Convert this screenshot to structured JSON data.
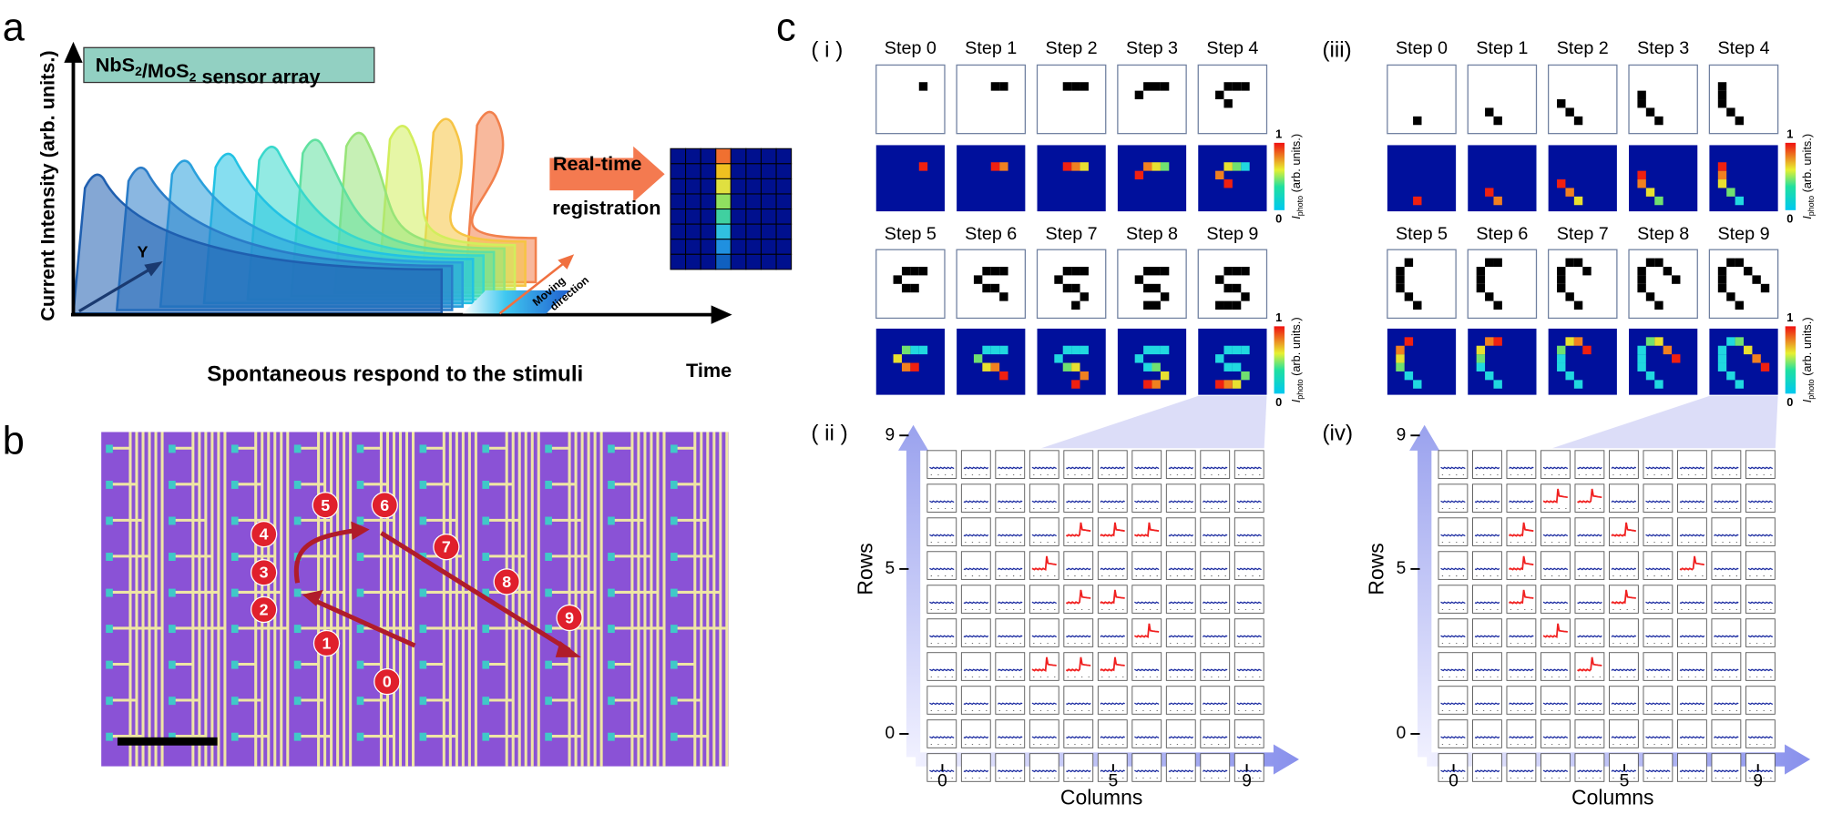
{
  "panels": {
    "a": "a",
    "b": "b",
    "c": "c"
  },
  "a": {
    "title": {
      "p1": "NbS",
      "s1": "2",
      "p2": "/MoS",
      "s2": "2",
      "p3": " sensor array"
    },
    "y_label": "Current Intensity (arb. units.)",
    "x_label": "Spontaneous respond to the stimuli",
    "time": "Time",
    "y": "Y",
    "arrow_top": "Real-time",
    "arrow_bottom": "registration",
    "moving": "Moving",
    "direction": "direction"
  },
  "b": {
    "markers": [
      "0",
      "1",
      "2",
      "3",
      "4",
      "5",
      "6",
      "7",
      "8",
      "9"
    ]
  },
  "c": {
    "sub_i": "( i )",
    "sub_ii": "( ii )",
    "sub_iii": "(iii)",
    "sub_iv": "(iv)",
    "steps": [
      "Step 0",
      "Step 1",
      "Step 2",
      "Step 3",
      "Step 4",
      "Step 5",
      "Step 6",
      "Step 7",
      "Step 8",
      "Step 9"
    ],
    "colorbar": {
      "max": "1",
      "min": "0",
      "i": "I",
      "photo": "photo",
      "units": " (arb. units.)"
    },
    "rows_label": "Rows",
    "columns_label": "Columns",
    "ticks": [
      "0",
      "5",
      "9"
    ]
  }
}
